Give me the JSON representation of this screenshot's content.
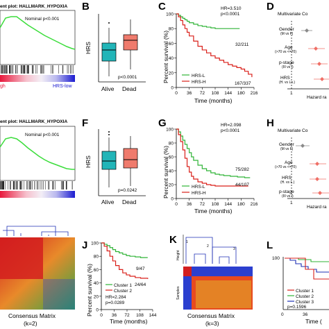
{
  "colors": {
    "green": "#2fb336",
    "red": "#d91e18",
    "blue": "#1c2fb5",
    "teal": "#22b5b8",
    "salmon": "#ef7b6d",
    "diamond": "#ef6f66",
    "gray": "#8a8a8a"
  },
  "panels": {
    "a": {
      "title": "ent plot: HALLMARK_HYPOXIA",
      "pvalue": "Nominal p<0.001",
      "left_label": "gh",
      "right_label": "HRS-low"
    },
    "b": {
      "letter": "B",
      "ylabel": "HRS",
      "pvalue": "p<0.0001",
      "categories": [
        "Alive",
        "Dead"
      ]
    },
    "c": {
      "letter": "C",
      "ylabel": "Percent survival (%)",
      "xlabel": "Time (months)",
      "hr": "HR=3.510",
      "p": "p<0.0001",
      "count_l": "32/211",
      "count_h": "167/337",
      "legend_l": "HRS-L",
      "legend_h": "HRS-H",
      "yticks": [
        "100",
        "80",
        "60",
        "40",
        "20",
        "0"
      ],
      "xticks": [
        "0",
        "36",
        "72",
        "108",
        "144",
        "180",
        "216"
      ]
    },
    "d": {
      "letter": "D",
      "title": "Multivariate Co",
      "xlabel": "Hazard ra",
      "ref_tick": "1",
      "rows": [
        {
          "label": "Gender",
          "sub": "(M vs F)"
        },
        {
          "label": "Age",
          "sub": "(>70 vs <=70)"
        },
        {
          "label": "p-stage",
          "sub": "(III vs I)"
        },
        {
          "label": "HRS",
          "sub": "(H. vs Lo.)"
        }
      ]
    },
    "e": {
      "title": "ent plot: HALLMARK_HYPOXIA",
      "pvalue": "Nominal p<0.001"
    },
    "f": {
      "letter": "F",
      "ylabel": "HRS",
      "pvalue": "p=0.0242",
      "categories": [
        "Alive",
        "Dead"
      ]
    },
    "g": {
      "letter": "G",
      "ylabel": "Percent survival (%)",
      "xlabel": "Time (months)",
      "hr": "HR=2.098",
      "p": "p<0.0001",
      "count_l": "75/282",
      "count_h": "44/107",
      "legend_l": "HRS-L",
      "legend_h": "HRS-H",
      "yticks": [
        "100",
        "80",
        "60",
        "40",
        "20",
        "0"
      ],
      "xticks": [
        "0",
        "36",
        "72",
        "108",
        "144",
        "180",
        "216"
      ]
    },
    "h": {
      "letter": "H",
      "title": "Multivariate Co",
      "xlabel": "Hazard ra",
      "ref_tick": "1",
      "rows": [
        {
          "label": "Gender",
          "sub": "(M vs F)"
        },
        {
          "label": "Age",
          "sub": "(>70 vs <=70)"
        },
        {
          "label": "HRS",
          "sub": "(H. vs L.)"
        },
        {
          "label": "p-stage",
          "sub": "(III vs I)"
        }
      ]
    },
    "i": {
      "xlabel": "Consensus Matrix",
      "k": "(k=2)"
    },
    "j": {
      "letter": "J",
      "ylabel": "Percent survival (%)",
      "xlabel": "Time (months)",
      "count_1": "9/47",
      "count_2": "24/64",
      "legend_1": "Cluster 1",
      "legend_2": "Cluster 2",
      "hr": "HR=2.284",
      "p": "p=0.0289",
      "yticks": [
        "100",
        "80",
        "60",
        "40",
        "20",
        "0"
      ],
      "xticks": [
        "0",
        "36",
        "72",
        "108",
        "144"
      ]
    },
    "k": {
      "letter": "K",
      "ylabel_top": "Height",
      "ylabel_bottom": "Samples",
      "xlabel": "Consensus Matrix",
      "k": "(k=3)",
      "dendro_labels": [
        "1",
        "2",
        "3"
      ]
    },
    "l": {
      "letter": "L",
      "legend_1": "Cluster 1",
      "legend_2": "Cluster 2",
      "legend_3": "Cluster 3",
      "p": "p=0.1596",
      "xlabel": "Time (",
      "yticks": [
        "100"
      ],
      "xticks": [
        "0",
        "36"
      ]
    }
  },
  "chart_data": [
    {
      "panel": "C",
      "type": "line",
      "title": "",
      "xlabel": "Time (months)",
      "ylabel": "Percent survival (%)",
      "xlim": [
        0,
        216
      ],
      "ylim": [
        0,
        100
      ],
      "series": [
        {
          "name": "HRS-L",
          "x": [
            0,
            6,
            12,
            18,
            24,
            30,
            36,
            48,
            60,
            72,
            84,
            96,
            108,
            150,
            176
          ],
          "y": [
            100,
            98,
            96,
            94,
            92,
            90,
            88,
            86,
            84,
            83,
            82,
            81,
            80,
            80,
            80
          ]
        },
        {
          "name": "HRS-H",
          "x": [
            0,
            6,
            12,
            18,
            24,
            30,
            36,
            48,
            60,
            72,
            84,
            96,
            108,
            120,
            132,
            144,
            156,
            168,
            180,
            190,
            200,
            210
          ],
          "y": [
            100,
            96,
            91,
            85,
            80,
            75,
            70,
            63,
            56,
            51,
            47,
            43,
            40,
            37,
            34,
            31,
            29,
            27,
            25,
            22,
            18,
            14
          ]
        }
      ]
    },
    {
      "panel": "G",
      "type": "line",
      "title": "",
      "xlabel": "Time (months)",
      "ylabel": "Percent survival (%)",
      "xlim": [
        0,
        216
      ],
      "ylim": [
        0,
        100
      ],
      "series": [
        {
          "name": "HRS-L",
          "x": [
            0,
            6,
            12,
            18,
            24,
            30,
            36,
            42,
            48,
            60,
            72,
            84,
            96,
            108,
            120,
            132,
            150,
            170,
            190,
            205
          ],
          "y": [
            100,
            96,
            90,
            84,
            78,
            72,
            66,
            60,
            55,
            48,
            43,
            40,
            37,
            35,
            34,
            33,
            32,
            31,
            30,
            30
          ]
        },
        {
          "name": "HRS-H",
          "x": [
            0,
            6,
            12,
            18,
            24,
            30,
            36,
            42,
            48,
            60,
            72,
            84,
            96,
            108,
            130,
            160,
            200
          ],
          "y": [
            100,
            92,
            82,
            70,
            58,
            46,
            38,
            32,
            28,
            24,
            22,
            20,
            19,
            18,
            18,
            18,
            18
          ]
        }
      ]
    },
    {
      "panel": "J",
      "type": "line",
      "title": "",
      "xlabel": "Time (months)",
      "ylabel": "Percent survival (%)",
      "xlim": [
        0,
        144
      ],
      "ylim": [
        0,
        100
      ],
      "series": [
        {
          "name": "Cluster 1",
          "x": [
            0,
            8,
            16,
            24,
            32,
            40,
            50,
            60,
            70,
            80,
            95,
            110,
            130
          ],
          "y": [
            100,
            98,
            96,
            93,
            90,
            87,
            85,
            83,
            81,
            80,
            79,
            78,
            78
          ]
        },
        {
          "name": "Cluster 2",
          "x": [
            0,
            8,
            16,
            24,
            32,
            40,
            50,
            60,
            70,
            80,
            95,
            110,
            130
          ],
          "y": [
            100,
            95,
            88,
            80,
            73,
            66,
            60,
            55,
            52,
            50,
            48,
            47,
            46
          ]
        }
      ]
    },
    {
      "panel": "B",
      "type": "box",
      "ylabel": "HRS",
      "categories": [
        "Alive",
        "Dead"
      ]
    },
    {
      "panel": "F",
      "type": "box",
      "ylabel": "HRS",
      "categories": [
        "Alive",
        "Dead"
      ]
    }
  ]
}
